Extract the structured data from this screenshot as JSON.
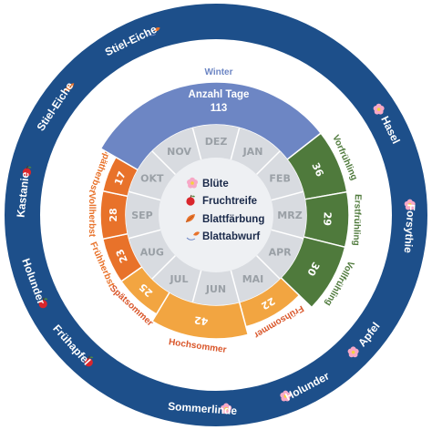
{
  "center": {
    "legend": [
      {
        "label": "Blüte",
        "icon": "blossom-icon"
      },
      {
        "label": "Fruchtreife",
        "icon": "apple-icon"
      },
      {
        "label": "Blattfärbung",
        "icon": "leaf-icon"
      },
      {
        "label": "Blattabwurf",
        "icon": "falling-leaf-icon"
      }
    ]
  },
  "months": [
    "JAN",
    "FEB",
    "MRZ",
    "APR",
    "MAI",
    "JUN",
    "JUL",
    "AUG",
    "SEP",
    "OKT",
    "NOV",
    "DEZ"
  ],
  "seasons": [
    {
      "name": "Vorfrühling",
      "days": "36",
      "color": "#4f7a3c"
    },
    {
      "name": "Erstfrühling",
      "days": "29",
      "color": "#4f7a3c"
    },
    {
      "name": "Vollfrühling",
      "days": "30",
      "color": "#4f7a3c"
    },
    {
      "name": "Frühsommer",
      "days": "22",
      "color": "#f2a541"
    },
    {
      "name": "Hochsommer",
      "days": "42",
      "color": "#f2a541"
    },
    {
      "name": "Spätsommer",
      "days": "25",
      "color": "#f2a541"
    },
    {
      "name": "Frühherbst",
      "days": "23",
      "color": "#e8722a"
    },
    {
      "name": "Vollherbst",
      "days": "28",
      "color": "#e8722a"
    },
    {
      "name": "Spätherbst",
      "days": "17",
      "color": "#e8722a"
    },
    {
      "name": "Winter",
      "days": "113",
      "color": "#6d86c4"
    }
  ],
  "winter_header": {
    "title": "Anzahl Tage",
    "days": "113"
  },
  "indicators": [
    {
      "plant": "Hasel",
      "icon": "blossom-icon"
    },
    {
      "plant": "Forsythie",
      "icon": "blossom-icon"
    },
    {
      "plant": "Apfel",
      "icon": "blossom-icon"
    },
    {
      "plant": "Holunder",
      "icon": "blossom-icon"
    },
    {
      "plant": "Sommerlinde",
      "icon": "blossom-icon"
    },
    {
      "plant": "Frühapfel",
      "icon": "apple-icon"
    },
    {
      "plant": "Holunder",
      "icon": "apple-icon"
    },
    {
      "plant": "Kastanie",
      "icon": "apple-icon"
    },
    {
      "plant": "Stiel-Eiche",
      "icon": "leaf-icon"
    },
    {
      "plant": "Stiel-Eiche",
      "icon": "falling-leaf-icon"
    }
  ],
  "colors": {
    "outer_ring": "#1d4f8a",
    "spring": "#4f7a3c",
    "summer": "#f2a541",
    "autumn": "#e8722a",
    "winter": "#6d86c4",
    "month_ring": "#d8dbe0",
    "center": "#eef0f3"
  }
}
